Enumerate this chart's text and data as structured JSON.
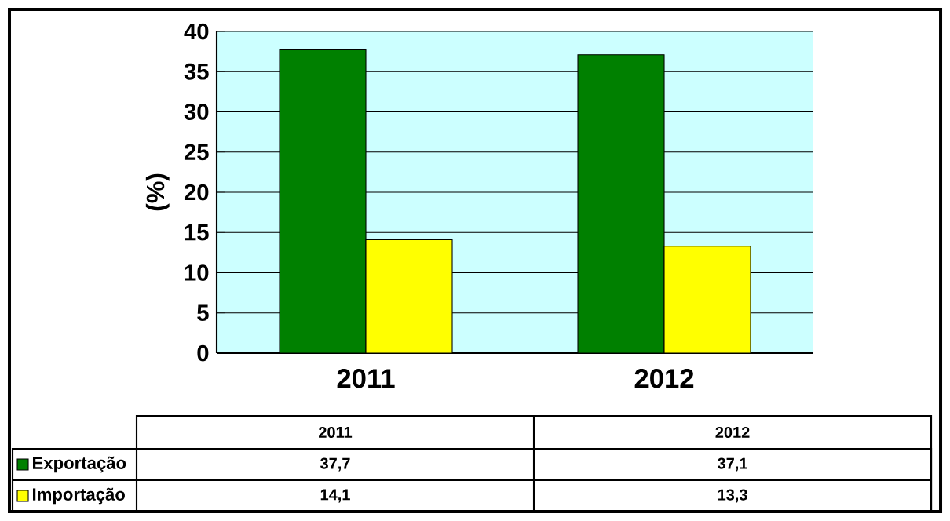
{
  "chart_data": {
    "type": "bar",
    "ylabel": "(%)",
    "categories": [
      "2011",
      "2012"
    ],
    "series": [
      {
        "name": "Exportação",
        "color": "#008000",
        "values": [
          37.7,
          37.1
        ],
        "value_labels": [
          "37,7",
          "37,1"
        ]
      },
      {
        "name": "Importação",
        "color": "#ffff00",
        "values": [
          14.1,
          13.3
        ],
        "value_labels": [
          "14,1",
          "13,3"
        ]
      }
    ],
    "ylim": [
      0,
      40
    ],
    "yticks": [
      0,
      5,
      10,
      15,
      20,
      25,
      30,
      35,
      40
    ],
    "grid": "y",
    "legend": "bottom"
  }
}
